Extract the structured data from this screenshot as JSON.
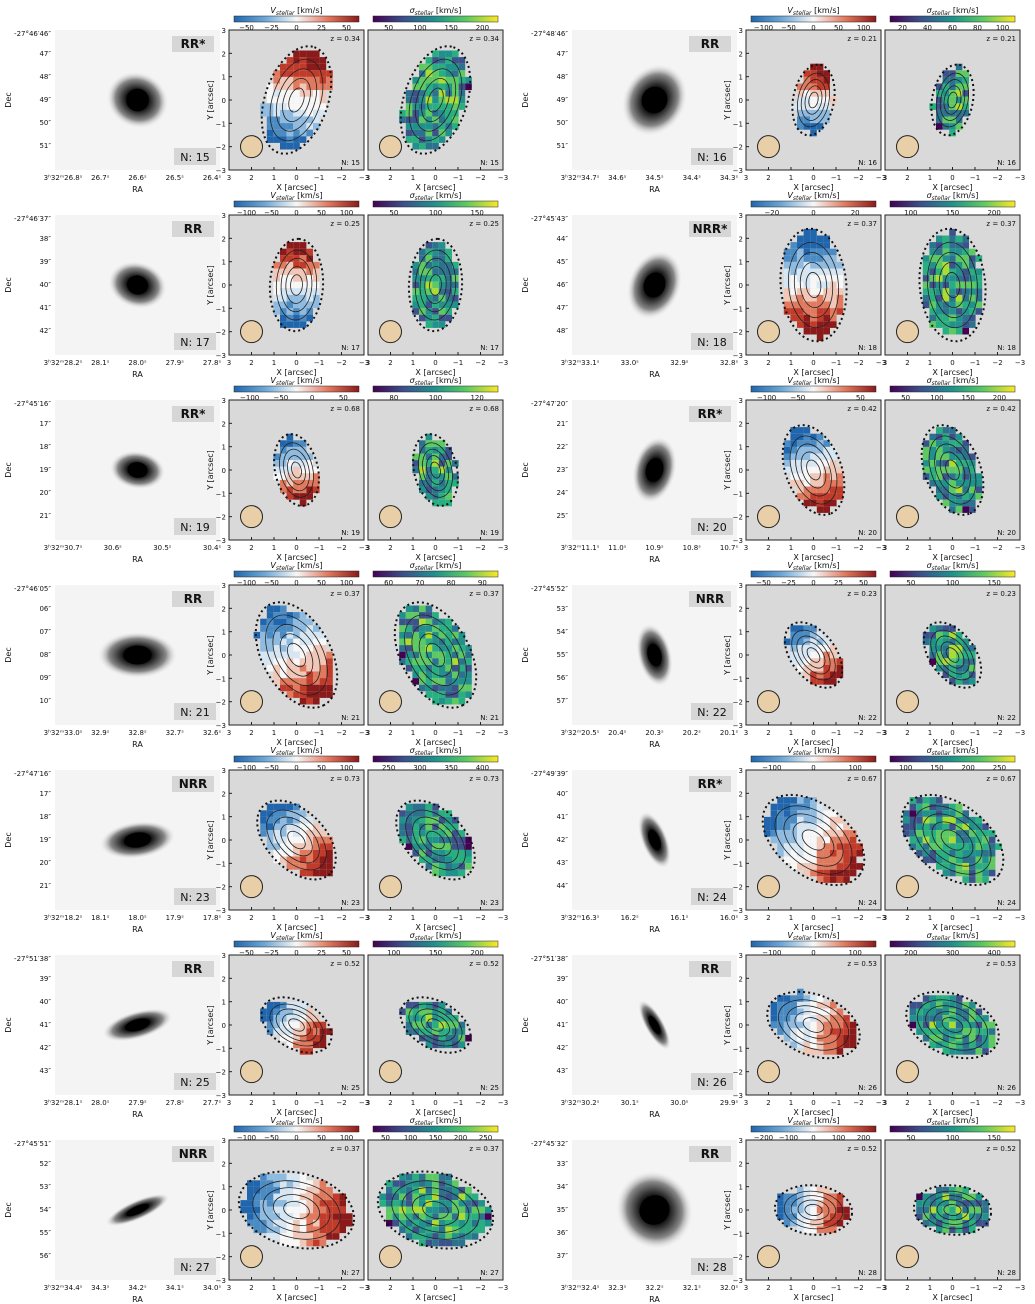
{
  "figure": {
    "axis_labels": {
      "dec": "Dec",
      "ra": "RA",
      "x": "X [arcsec]",
      "y": "Y [arcsec]",
      "vel_cbar": "V",
      "vel_sub": "stellar",
      "sig_cbar": "σ",
      "sig_sub": "stellar",
      "units": " [km/s]"
    },
    "xy_ticks": [
      "3",
      "2",
      "1",
      "0",
      "−1",
      "−2",
      "−3"
    ],
    "y_ticks": [
      "3",
      "2",
      "1",
      "0",
      "−1",
      "−2",
      "−3"
    ],
    "galaxies": [
      {
        "n": "N: 15",
        "nn": "N: 15",
        "class": "RR*",
        "z": "z = 0.34",
        "dec_top": "-27°46′46″",
        "dec_ticks": [
          "47″",
          "48″",
          "49″",
          "50″",
          "51″"
        ],
        "ra_ticks": [
          "3ʰ32ᵐ26.8ˢ",
          "26.7ˢ",
          "26.6ˢ",
          "26.5ˢ",
          "26.4ˢ"
        ],
        "vticks": [
          "−50",
          "−25",
          "0",
          "25",
          "50"
        ],
        "sticks": [
          "50",
          "100",
          "150",
          "200"
        ]
      },
      {
        "n": "N: 16",
        "nn": "N: 16",
        "class": "RR",
        "z": "z = 0.21",
        "dec_top": "-27°48′46″",
        "dec_ticks": [
          "47″",
          "48″",
          "49″",
          "50″",
          "51″"
        ],
        "ra_ticks": [
          "3ʰ32ᵐ34.7ˢ",
          "34.6ˢ",
          "34.5ˢ",
          "34.4ˢ",
          "34.3ˢ"
        ],
        "vticks": [
          "−100",
          "−50",
          "0",
          "50",
          "100"
        ],
        "sticks": [
          "20",
          "40",
          "60",
          "80",
          "100"
        ]
      },
      {
        "n": "N: 17",
        "nn": "N: 17",
        "class": "RR",
        "z": "z = 0.25",
        "dec_top": "-27°46′37″",
        "dec_ticks": [
          "38″",
          "39″",
          "40″",
          "41″",
          "42″"
        ],
        "ra_ticks": [
          "3ʰ32ᵐ28.2ˢ",
          "28.1ˢ",
          "28.0ˢ",
          "27.9ˢ",
          "27.8ˢ"
        ],
        "vticks": [
          "−100",
          "−50",
          "0",
          "50",
          "100"
        ],
        "sticks": [
          "50",
          "100",
          "150"
        ]
      },
      {
        "n": "N: 18",
        "nn": "N: 18",
        "class": "NRR*",
        "z": "z = 0.37",
        "dec_top": "-27°45′43″",
        "dec_ticks": [
          "44″",
          "45″",
          "46″",
          "47″",
          "48″"
        ],
        "ra_ticks": [
          "3ʰ32ᵐ33.1ˢ",
          "33.0ˢ",
          "32.9ˢ",
          "32.8ˢ"
        ],
        "vticks": [
          "−20",
          "0",
          "20"
        ],
        "sticks": [
          "100",
          "150",
          "200"
        ]
      },
      {
        "n": "N: 19",
        "nn": "N: 19",
        "class": "RR*",
        "z": "z = 0.68",
        "dec_top": "-27°45′16″",
        "dec_ticks": [
          "17″",
          "18″",
          "19″",
          "20″",
          "21″"
        ],
        "ra_ticks": [
          "3ʰ32ᵐ30.7ˢ",
          "30.6ˢ",
          "30.5ˢ",
          "30.4ˢ"
        ],
        "vticks": [
          "−100",
          "−50",
          "0",
          "50"
        ],
        "sticks": [
          "80",
          "100",
          "120"
        ]
      },
      {
        "n": "N: 20",
        "nn": "N: 20",
        "class": "RR*",
        "z": "z = 0.42",
        "dec_top": "-27°47′20″",
        "dec_ticks": [
          "21″",
          "22″",
          "23″",
          "24″",
          "25″"
        ],
        "ra_ticks": [
          "3ʰ32ᵐ11.1ˢ",
          "11.0ˢ",
          "10.9ˢ",
          "10.8ˢ",
          "10.7ˢ"
        ],
        "vticks": [
          "−100",
          "−50",
          "0",
          "50"
        ],
        "sticks": [
          "50",
          "100",
          "150",
          "200"
        ]
      },
      {
        "n": "N: 21",
        "nn": "N: 21",
        "class": "RR",
        "z": "z = 0.37",
        "dec_top": "-27°46′05″",
        "dec_ticks": [
          "06″",
          "07″",
          "08″",
          "09″",
          "10″"
        ],
        "ra_ticks": [
          "3ʰ32ᵐ33.0ˢ",
          "32.9ˢ",
          "32.8ˢ",
          "32.7ˢ",
          "32.6ˢ"
        ],
        "vticks": [
          "−100",
          "−50",
          "0",
          "50",
          "100"
        ],
        "sticks": [
          "60",
          "70",
          "80",
          "90"
        ]
      },
      {
        "n": "N: 22",
        "nn": "N: 22",
        "class": "NRR",
        "z": "z = 0.23",
        "dec_top": "-27°45′52″",
        "dec_ticks": [
          "53″",
          "54″",
          "55″",
          "56″",
          "57″"
        ],
        "ra_ticks": [
          "3ʰ32ᵐ20.5ˢ",
          "20.4ˢ",
          "20.3ˢ",
          "20.2ˢ",
          "20.1ˢ"
        ],
        "vticks": [
          "−50",
          "−25",
          "0",
          "25",
          "50"
        ],
        "sticks": [
          "50",
          "100",
          "150"
        ]
      },
      {
        "n": "N: 23",
        "nn": "N: 23",
        "class": "NRR",
        "z": "z = 0.73",
        "dec_top": "-27°47′16″",
        "dec_ticks": [
          "17″",
          "18″",
          "19″",
          "20″",
          "21″"
        ],
        "ra_ticks": [
          "3ʰ32ᵐ18.2ˢ",
          "18.1ˢ",
          "18.0ˢ",
          "17.9ˢ",
          "17.8ˢ"
        ],
        "vticks": [
          "−100",
          "−50",
          "0",
          "50",
          "100"
        ],
        "sticks": [
          "250",
          "300",
          "350",
          "400"
        ]
      },
      {
        "n": "N: 24",
        "nn": "N: 24",
        "class": "RR*",
        "z": "z = 0.67",
        "dec_top": "-27°49′39″",
        "dec_ticks": [
          "40″",
          "41″",
          "42″",
          "43″",
          "44″"
        ],
        "ra_ticks": [
          "3ʰ32ᵐ16.3ˢ",
          "16.2ˢ",
          "16.1ˢ",
          "16.0ˢ"
        ],
        "vticks": [
          "−100",
          "0",
          "100"
        ],
        "sticks": [
          "100",
          "150",
          "200",
          "250"
        ]
      },
      {
        "n": "N: 25",
        "nn": "N: 25",
        "class": "RR",
        "z": "z = 0.52",
        "dec_top": "-27°51′38″",
        "dec_ticks": [
          "39″",
          "40″",
          "41″",
          "42″",
          "43″"
        ],
        "ra_ticks": [
          "3ʰ32ᵐ28.1ˢ",
          "28.0ˢ",
          "27.9ˢ",
          "27.8ˢ",
          "27.7ˢ"
        ],
        "vticks": [
          "−50",
          "−25",
          "0",
          "25",
          "50"
        ],
        "sticks": [
          "100",
          "150",
          "200"
        ]
      },
      {
        "n": "N: 26",
        "nn": "N: 26",
        "class": "RR",
        "z": "z = 0.53",
        "dec_top": "-27°51′38″",
        "dec_ticks": [
          "39″",
          "40″",
          "41″",
          "42″",
          "43″"
        ],
        "ra_ticks": [
          "3ʰ32ᵐ30.2ˢ",
          "30.1ˢ",
          "30.0ˢ",
          "29.9ˢ"
        ],
        "vticks": [
          "−100",
          "0",
          "100"
        ],
        "sticks": [
          "200",
          "300",
          "400"
        ]
      },
      {
        "n": "N: 27",
        "nn": "N: 27",
        "class": "NRR",
        "z": "z = 0.37",
        "dec_top": "-27°45′51″",
        "dec_ticks": [
          "52″",
          "53″",
          "54″",
          "55″",
          "56″"
        ],
        "ra_ticks": [
          "3ʰ32ᵐ34.4ˢ",
          "34.3ˢ",
          "34.2ˢ",
          "34.1ˢ",
          "34.0ˢ"
        ],
        "vticks": [
          "−100",
          "−50",
          "0",
          "50",
          "100"
        ],
        "sticks": [
          "50",
          "100",
          "150",
          "200",
          "250"
        ]
      },
      {
        "n": "N: 28",
        "nn": "N: 28",
        "class": "RR",
        "z": "z = 0.52",
        "dec_top": "-27°45′32″",
        "dec_ticks": [
          "33″",
          "34″",
          "35″",
          "36″",
          "37″"
        ],
        "ra_ticks": [
          "3ʰ32ᵐ32.4ˢ",
          "32.3ˢ",
          "32.2ˢ",
          "32.1ˢ",
          "32.0ˢ"
        ],
        "vticks": [
          "−200",
          "−100",
          "0",
          "100",
          "200"
        ],
        "sticks": [
          "50",
          "100",
          "150"
        ]
      }
    ]
  }
}
